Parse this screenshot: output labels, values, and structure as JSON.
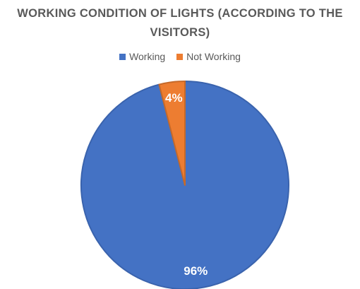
{
  "chart_data": {
    "type": "pie",
    "title_lines": [
      "WORKING CONDITION OF LIGHTS (ACCORDING TO THE",
      "VISITORS)"
    ],
    "categories": [
      "Working",
      "Not Working"
    ],
    "values": [
      96,
      4
    ],
    "data_labels": [
      "96%",
      "4%"
    ],
    "colors": [
      "#4472C4",
      "#ED7D31"
    ],
    "legend_position": "top"
  }
}
